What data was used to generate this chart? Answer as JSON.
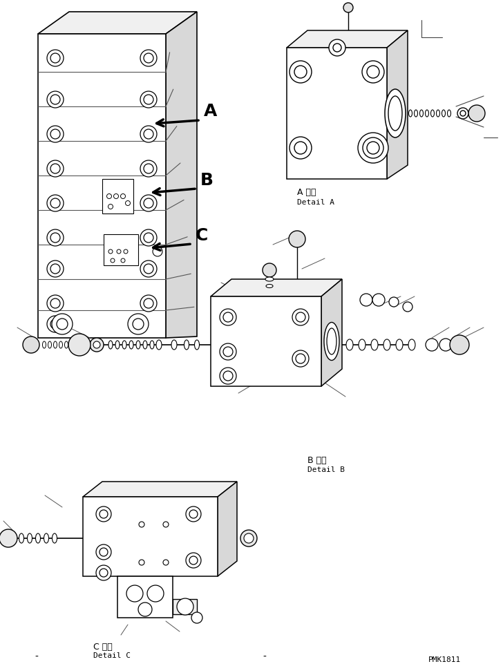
{
  "bg_color": "#ffffff",
  "fig_width": 7.28,
  "fig_height": 9.62,
  "dpi": 100,
  "label_A_japanese": "A 詳細",
  "label_A_english": "Detail A",
  "label_B_japanese": "B 詳細",
  "label_B_english": "Detail B",
  "label_C_japanese": "C 詳細",
  "label_C_english": "Detail C",
  "part_number": "PMK1811",
  "arrow_A_label": "A",
  "arrow_B_label": "B",
  "arrow_C_label": "C",
  "line_color": "#000000",
  "line_width": 1.0,
  "text_color": "#000000"
}
